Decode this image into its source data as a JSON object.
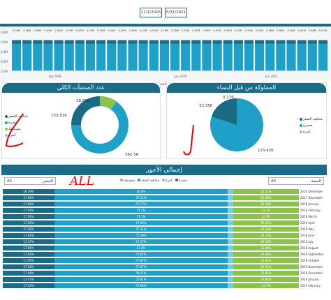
{
  "filters": {
    "date_start": "11/1/2016",
    "date_end": "5/31/2021"
  },
  "top_chart": {
    "axis_labels": [
      "0.8M",
      "0.6M",
      "0.4M",
      "0.2M",
      "0.0M"
    ],
    "bar_labels": [
      "0.56M",
      "0.56M",
      "0.56M",
      "0.55M",
      "0.55M",
      "0.55M",
      "0.55M",
      "0.55M",
      "0.55M",
      "0.55M",
      "0.55M",
      "0.55M",
      "0.55M",
      "0.55M",
      "0.55M",
      "0.55M",
      "0.55M",
      "0.55M",
      "0.55M",
      "0.55M",
      "0.55M",
      "0.55M",
      "0.55M",
      "0.55M",
      "0.56M",
      "0.56M",
      "0.56M",
      "0.56M",
      "0.56M",
      "0.57M"
    ],
    "x_labels": [
      "Jan 2018",
      "Jan 2020",
      "Jan 2021"
    ],
    "legend": [
      "صغيرة",
      "متناهية الصغر",
      "كبيرة",
      "متوسطة"
    ],
    "legend_colors": [
      "#1b6a86",
      "#1ea0c8",
      "#6fd0e8",
      "#8bc34a"
    ]
  },
  "panel_left": {
    "title": "عدد المنشآت الكلي",
    "labels": {
      "small_top": "18.89K",
      "left": "153.61K",
      "bottom": "362.5K"
    },
    "legend": [
      "متناهية الصغر",
      "صغيرة",
      "متوسطة",
      "كبيرة"
    ],
    "legend_colors": [
      "#1b6a86",
      "#1ea0c8",
      "#8bc34a",
      "#6fd0e8"
    ]
  },
  "panel_right": {
    "title": "المملوكة من قبل النساء",
    "labels": {
      "top": "0.27K",
      "left": "33.35K",
      "bottom": "123.42K"
    },
    "legend": [
      "متناهية الصغر",
      "صغيرة",
      "كبيرة"
    ],
    "legend_colors": [
      "#1b6a86",
      "#1ea0c8",
      "#6fd0e8"
    ]
  },
  "bottom": {
    "title": "إجمالي الأجور",
    "select_left": {
      "value": "All",
      "label": "الجنس"
    },
    "select_right": {
      "value": "All",
      "label": "الحصة"
    },
    "handwritten": "ALL",
    "legend": [
      "متوسطة",
      "متناهية الصغر",
      "كبيرة",
      "صغيرة"
    ],
    "rows": [
      {
        "a": "16.39%",
        "b": "56.6%",
        "c": "",
        "d": "22.11%",
        "date": "2016 December"
      },
      {
        "a": "17.61%",
        "b": "57.21%",
        "c": "",
        "d": "22.38%",
        "date": "2017 December"
      },
      {
        "a": "17.66%",
        "b": "57.17%",
        "c": "",
        "d": "22.39%",
        "date": "2018 January"
      },
      {
        "a": "17.56%",
        "b": "57.2%",
        "c": "",
        "d": "22.1%",
        "date": "2018 February"
      },
      {
        "a": "17.56%",
        "b": "57.1%",
        "c": "",
        "d": "22.2%",
        "date": "2018 March"
      },
      {
        "a": "17.56%",
        "b": "57.09%",
        "c": "",
        "d": "22.25%",
        "date": "2018 April"
      },
      {
        "a": "17.36%",
        "b": "57.31%",
        "c": "",
        "d": "22.33%",
        "date": "2018 May"
      },
      {
        "a": "17.64%",
        "b": "57.28%",
        "c": "",
        "d": "22.23%",
        "date": "2018 June"
      },
      {
        "a": "17.37%",
        "b": "57.57%",
        "c": "",
        "d": "22.18%",
        "date": "2018 July"
      },
      {
        "a": "17.66%",
        "b": "57.8%",
        "c": "",
        "d": "21.88%",
        "date": "2018 August"
      },
      {
        "a": "17.64%",
        "b": "57.87%",
        "c": "",
        "d": "21.96%",
        "date": "2018 September"
      },
      {
        "a": "17.59%",
        "b": "57.87%",
        "c": "",
        "d": "21.95%",
        "date": "2018 October"
      },
      {
        "a": "17.58%",
        "b": "57.97%",
        "c": "",
        "d": "21.91%",
        "date": "2018 November"
      },
      {
        "a": "17.48%",
        "b": "58.07%",
        "c": "",
        "d": "21.91%",
        "date": "2018 December"
      },
      {
        "a": "17.57%",
        "b": "57.81%",
        "c": "",
        "d": "21.82%",
        "date": "2019 January"
      },
      {
        "a": "17.59%",
        "b": "57.69%",
        "c": "",
        "d": "21.7%",
        "date": "2019 February"
      }
    ]
  }
}
